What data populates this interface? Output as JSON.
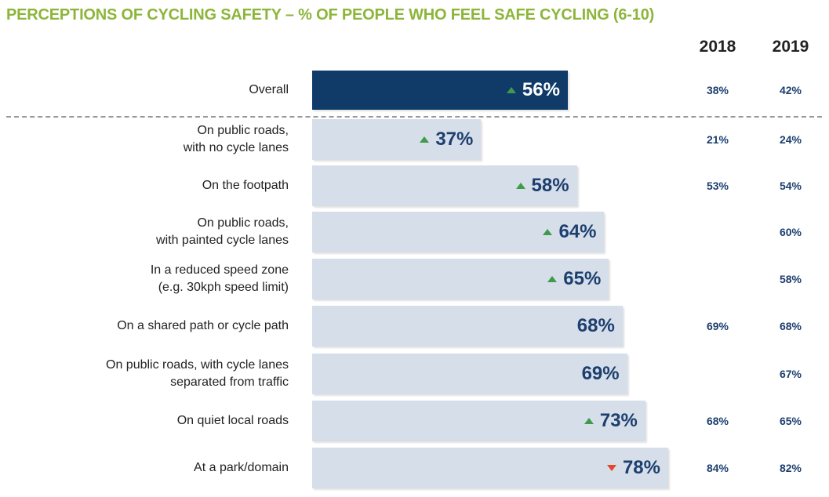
{
  "chart_data": {
    "type": "bar",
    "orientation": "horizontal",
    "title": "PERCEPTIONS OF CYCLING SAFETY – % OF PEOPLE WHO FEEL SAFE CYCLING (6-10)",
    "categories": [
      "Overall",
      "On public roads,\nwith no cycle lanes",
      "On the footpath",
      "On public roads,\nwith painted cycle lanes",
      "In a reduced speed zone\n(e.g. 30kph speed limit)",
      "On a shared path or cycle path",
      "On public roads, with cycle lanes\nseparated from traffic",
      "On quiet local roads",
      "At a park/domain"
    ],
    "values": [
      56,
      37,
      58,
      64,
      65,
      68,
      69,
      73,
      78
    ],
    "value_labels": [
      "56%",
      "37%",
      "58%",
      "64%",
      "65%",
      "68%",
      "69%",
      "73%",
      "78%"
    ],
    "trend": [
      "up",
      "up",
      "up",
      "up",
      "up",
      null,
      null,
      "up",
      "down"
    ],
    "trend_colors": {
      "up": "#3f9b4b",
      "down": "#e2472c"
    },
    "color": "#d6deea",
    "highlight": {
      "index": 0,
      "color": "#103b69"
    },
    "series": [
      {
        "name": "2018",
        "values": [
          38,
          21,
          53,
          null,
          null,
          69,
          null,
          68,
          84
        ],
        "value_labels": [
          "38%",
          "21%",
          "53%",
          null,
          null,
          "69%",
          null,
          "68%",
          "84%"
        ]
      },
      {
        "name": "2019",
        "values": [
          42,
          24,
          54,
          60,
          58,
          68,
          67,
          65,
          82
        ],
        "value_labels": [
          "42%",
          "24%",
          "54%",
          "60%",
          "58%",
          "68%",
          "67%",
          "65%",
          "82%"
        ]
      }
    ]
  }
}
